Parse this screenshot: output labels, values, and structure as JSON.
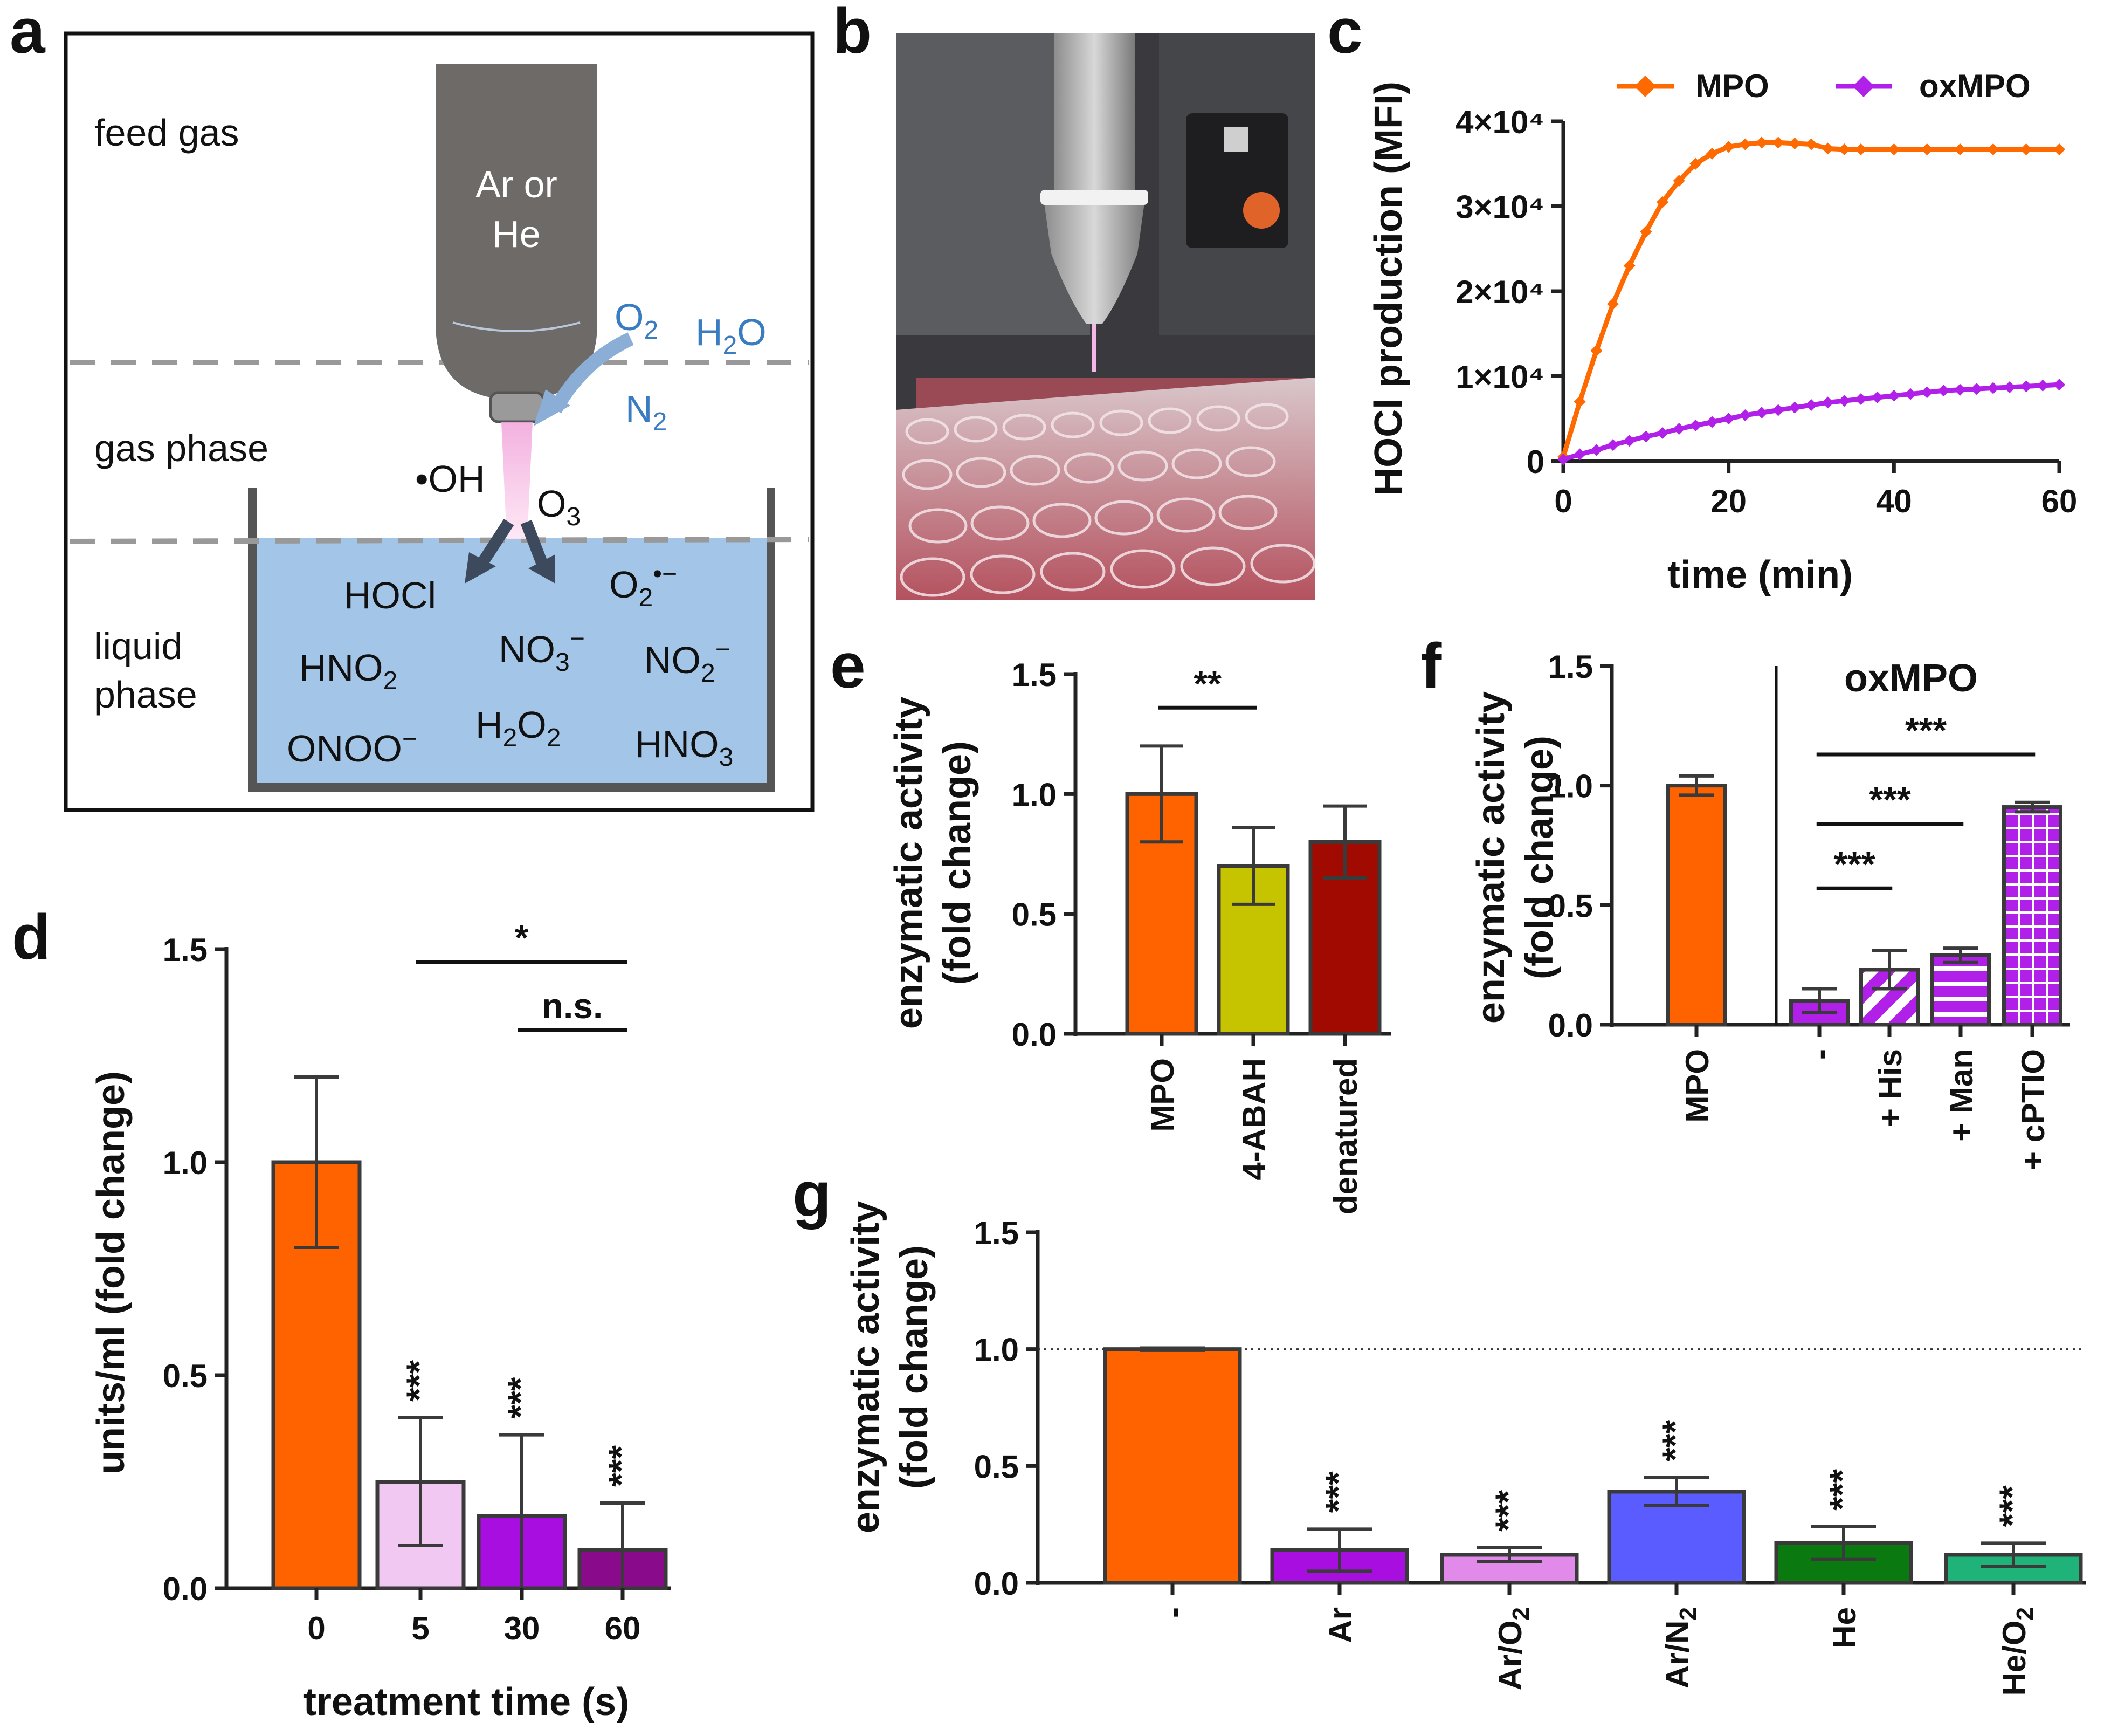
{
  "panels": {
    "a": {
      "label": "a",
      "zones": [
        "feed gas",
        "gas phase",
        "liquid phase"
      ],
      "nozzle_text": [
        "Ar or",
        "He"
      ],
      "gases": [
        "O2",
        "H2O",
        "N2"
      ],
      "gas_species": [
        "•OH",
        "O3"
      ],
      "liquid_species": [
        "HOCl",
        "O2•−",
        "HNO2",
        "NO3−",
        "NO2−",
        "H2O2",
        "ONOO−",
        "HNO3"
      ]
    },
    "b": {
      "label": "b"
    }
  },
  "chart_data": [
    {
      "id": "c",
      "type": "line",
      "label": "c",
      "xlabel": "time (min)",
      "ylabel": "HOCl production (MFI)",
      "xlim": [
        0,
        60
      ],
      "ylim": [
        0,
        40000
      ],
      "xticks": [
        "0",
        "20",
        "40",
        "60"
      ],
      "yticks": [
        "0",
        "1×10⁴",
        "2×10⁴",
        "3×10⁴",
        "4×10⁴"
      ],
      "legend_position": "top",
      "series": [
        {
          "name": "MPO",
          "color": "#ff6a00",
          "x": [
            0,
            2,
            4,
            6,
            8,
            10,
            12,
            14,
            16,
            18,
            20,
            22,
            24,
            26,
            28,
            30,
            32,
            34,
            36,
            40,
            44,
            48,
            52,
            56,
            60
          ],
          "y": [
            500,
            7000,
            13000,
            18500,
            23000,
            27000,
            30500,
            33000,
            35000,
            36200,
            37000,
            37300,
            37500,
            37500,
            37400,
            37300,
            36800,
            36700,
            36700,
            36700,
            36700,
            36700,
            36700,
            36700,
            36700
          ]
        },
        {
          "name": "oxMPO",
          "color": "#b020e8",
          "x": [
            0,
            2,
            4,
            6,
            8,
            10,
            12,
            14,
            16,
            18,
            20,
            22,
            24,
            26,
            28,
            30,
            32,
            34,
            36,
            38,
            40,
            42,
            44,
            46,
            48,
            50,
            52,
            54,
            56,
            58,
            60
          ],
          "y": [
            200,
            800,
            1300,
            1900,
            2400,
            2900,
            3300,
            3800,
            4200,
            4600,
            5000,
            5400,
            5700,
            6000,
            6300,
            6600,
            6900,
            7100,
            7300,
            7500,
            7700,
            7900,
            8100,
            8300,
            8400,
            8500,
            8600,
            8700,
            8800,
            8900,
            9000
          ]
        }
      ]
    },
    {
      "id": "d",
      "type": "bar",
      "label": "d",
      "xlabel": "treatment time (s)",
      "ylabel": "units/ml (fold change)",
      "ylim": [
        0,
        1.5
      ],
      "yticks": [
        "0.0",
        "0.5",
        "1.0",
        "1.5"
      ],
      "categories": [
        "0",
        "5",
        "30",
        "60"
      ],
      "values": [
        1.0,
        0.25,
        0.17,
        0.09
      ],
      "errors": [
        0.2,
        0.15,
        0.19,
        0.11
      ],
      "colors": [
        "#ff6300",
        "#f0c8f2",
        "#a80ee0",
        "#8a0a8c"
      ],
      "stars": [
        "",
        "***",
        "***",
        "***"
      ],
      "comparisons": [
        {
          "from": 1,
          "to": 3,
          "level": 1.47,
          "text": "*"
        },
        {
          "from": 2,
          "to": 3,
          "level": 1.31,
          "text": "n.s."
        }
      ]
    },
    {
      "id": "e",
      "type": "bar",
      "label": "e",
      "ylabel": "enzymatic activity (fold change)",
      "ylim": [
        0,
        1.5
      ],
      "yticks": [
        "0.0",
        "0.5",
        "1.0",
        "1.5"
      ],
      "categories": [
        "MPO",
        "4-ABAH",
        "denatured"
      ],
      "values": [
        1.0,
        0.7,
        0.8
      ],
      "errors": [
        0.2,
        0.16,
        0.15
      ],
      "colors": [
        "#ff6300",
        "#c6c300",
        "#a00a00"
      ],
      "comparisons": [
        {
          "from": 0,
          "to": 1,
          "level": 1.36,
          "text": "**"
        }
      ]
    },
    {
      "id": "f",
      "type": "bar",
      "label": "f",
      "ylabel": "enzymatic activity (fold change)",
      "group_label": "oxMPO",
      "ylim": [
        0,
        1.5
      ],
      "yticks": [
        "0.0",
        "0.5",
        "1.0",
        "1.5"
      ],
      "categories": [
        "MPO",
        "-",
        "+ His",
        "+ Man",
        "+ cPTIO"
      ],
      "values": [
        1.0,
        0.1,
        0.23,
        0.29,
        0.91
      ],
      "errors": [
        0.04,
        0.05,
        0.08,
        0.03,
        0.02
      ],
      "colors": [
        "#ff6300",
        "#b020e8",
        "#b020e8",
        "#b020e8",
        "#b020e8"
      ],
      "patterns": [
        "solid",
        "solid",
        "diagonal",
        "horizontal",
        "grid"
      ],
      "comparisons": [
        {
          "from": 1,
          "to": 2,
          "level": 0.57,
          "text": "***"
        },
        {
          "from": 1,
          "to": 3,
          "level": 0.84,
          "text": "***"
        },
        {
          "from": 1,
          "to": 4,
          "level": 1.13,
          "text": "***"
        }
      ]
    },
    {
      "id": "g",
      "type": "bar",
      "label": "g",
      "ylabel": "enzymatic activity (fold change)",
      "ylim": [
        0,
        1.5
      ],
      "yticks": [
        "0.0",
        "0.5",
        "1.0",
        "1.5"
      ],
      "reference_line": 1.0,
      "categories": [
        "-",
        "Ar",
        "Ar/O2",
        "Ar/N2",
        "He",
        "He/O2"
      ],
      "values": [
        1.0,
        0.14,
        0.12,
        0.39,
        0.17,
        0.12
      ],
      "errors": [
        0.005,
        0.09,
        0.03,
        0.06,
        0.07,
        0.05
      ],
      "colors": [
        "#ff6300",
        "#a80ee0",
        "#e28aea",
        "#5a5cff",
        "#0a7a10",
        "#1fb37a"
      ],
      "stars": [
        "",
        "***",
        "***",
        "***",
        "***",
        "***"
      ]
    }
  ]
}
